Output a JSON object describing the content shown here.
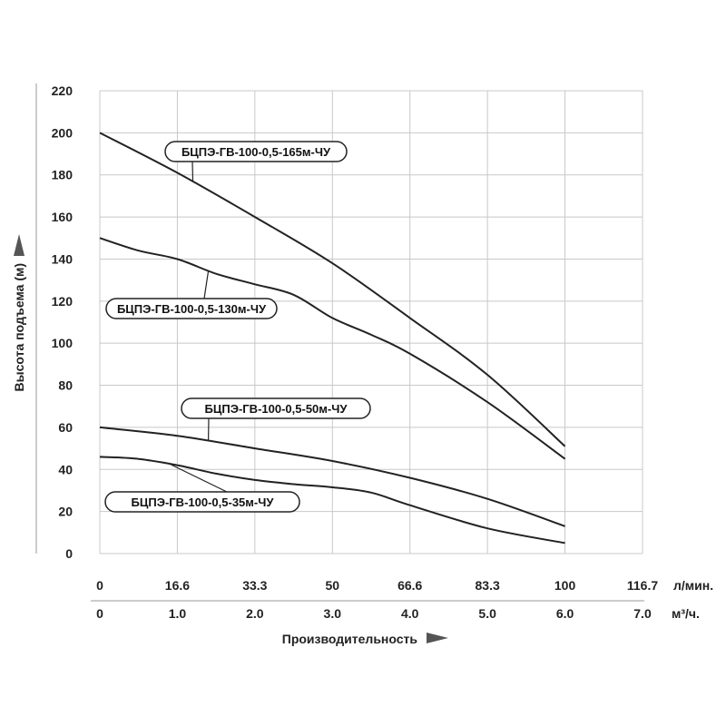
{
  "chart_data": {
    "type": "line",
    "ylabel": "Высота подъема (м)",
    "xlabel": "Производительность",
    "ylim": [
      0,
      220
    ],
    "yticks": [
      0,
      20,
      40,
      60,
      80,
      100,
      120,
      140,
      160,
      180,
      200,
      220
    ],
    "xlim": [
      0,
      7
    ],
    "x_axes": [
      {
        "unit": "л/мин.",
        "ticks": [
          "0",
          "16.6",
          "33.3",
          "50",
          "66.6",
          "83.3",
          "100",
          "116.7"
        ]
      },
      {
        "unit": "м³/ч.",
        "ticks": [
          "0",
          "1.0",
          "2.0",
          "3.0",
          "4.0",
          "5.0",
          "6.0",
          "7.0"
        ]
      }
    ],
    "grid": true,
    "series": [
      {
        "name": "БЦПЭ-ГВ-100-0,5-165м-ЧУ",
        "x": [
          0,
          1,
          2,
          3,
          4,
          5,
          6
        ],
        "y": [
          200,
          181,
          160,
          138,
          112,
          85,
          51
        ]
      },
      {
        "name": "БЦПЭ-ГВ-100-0,5-130м-ЧУ",
        "x": [
          0,
          0.5,
          1,
          1.5,
          2,
          2.5,
          3,
          3.5,
          4,
          5,
          6
        ],
        "y": [
          150,
          144,
          140,
          133,
          128,
          123,
          112,
          104,
          95,
          72,
          45
        ]
      },
      {
        "name": "БЦПЭ-ГВ-100-0,5-50м-ЧУ",
        "x": [
          0,
          1,
          2,
          3,
          4,
          5,
          6
        ],
        "y": [
          60,
          56,
          50,
          44,
          36,
          26,
          13
        ]
      },
      {
        "name": "БЦПЭ-ГВ-100-0,5-35м-ЧУ",
        "x": [
          0,
          0.5,
          1,
          1.5,
          2,
          2.5,
          3,
          3.5,
          4,
          5,
          6
        ],
        "y": [
          46,
          45,
          42,
          38,
          35,
          33,
          31.5,
          29,
          23,
          12,
          5
        ]
      }
    ]
  }
}
